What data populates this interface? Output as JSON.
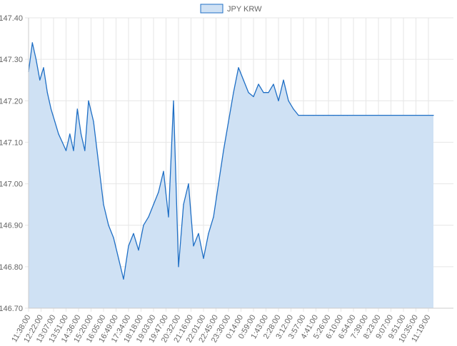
{
  "chart_data": {
    "type": "area",
    "title": "",
    "xlabel": "",
    "ylabel": "",
    "legend": {
      "position": "top",
      "entries": [
        "JPY KRW"
      ]
    },
    "grid": true,
    "colors": {
      "line": "#1f6fc5",
      "fill": "#cfe1f4",
      "grid": "#e6e6e6"
    },
    "ylim": [
      146.7,
      147.4
    ],
    "y_ticks": [
      "146.70",
      "146.80",
      "146.90",
      "147.00",
      "147.10",
      "147.20",
      "147.30",
      "147.40"
    ],
    "x_ticks": [
      "11:38:00",
      "12:22:00",
      "13:07:00",
      "13:51:00",
      "14:36:00",
      "15:20:00",
      "16:05:00",
      "16:49:00",
      "17:34:00",
      "18:18:00",
      "19:03:00",
      "19:47:00",
      "20:32:00",
      "21:16:00",
      "22:01:00",
      "22:45:00",
      "23:30:00",
      "0:14:00",
      "0:59:00",
      "1:43:00",
      "2:28:00",
      "3:12:00",
      "3:57:00",
      "4:41:00",
      "5:26:00",
      "6:10:00",
      "6:54:00",
      "7:39:00",
      "8:23:00",
      "9:07:00",
      "9:51:00",
      "10:35:00",
      "11:19:00"
    ],
    "series": [
      {
        "name": "JPY KRW",
        "x": [
          0,
          0.3,
          0.6,
          0.9,
          1.2,
          1.5,
          1.8,
          2.1,
          2.4,
          2.7,
          3.0,
          3.3,
          3.6,
          3.9,
          4.2,
          4.5,
          4.8,
          5.2,
          5.6,
          6.0,
          6.4,
          6.8,
          7.2,
          7.6,
          8.0,
          8.4,
          8.8,
          9.2,
          9.6,
          10.0,
          10.4,
          10.8,
          11.2,
          11.6,
          12.0,
          12.4,
          12.8,
          13.2,
          13.6,
          14.0,
          14.4,
          14.8,
          15.2,
          15.6,
          16.0,
          16.4,
          16.8,
          17.2,
          17.6,
          18.0,
          18.4,
          18.8,
          19.2,
          19.6,
          20.0,
          20.4,
          20.8,
          21.2,
          21.6,
          22.0,
          22.4,
          22.8,
          23.2,
          23.6,
          24.0,
          24.4,
          24.8,
          25.2,
          25.5,
          32.4
        ],
        "values": [
          147.27,
          147.34,
          147.3,
          147.25,
          147.28,
          147.22,
          147.18,
          147.15,
          147.12,
          147.1,
          147.08,
          147.12,
          147.08,
          147.18,
          147.12,
          147.08,
          147.2,
          147.15,
          147.05,
          146.95,
          146.9,
          146.87,
          146.82,
          146.77,
          146.85,
          146.88,
          146.84,
          146.9,
          146.92,
          146.95,
          146.98,
          147.03,
          146.92,
          147.2,
          146.8,
          146.95,
          147.0,
          146.85,
          146.88,
          146.82,
          146.88,
          146.92,
          147.0,
          147.08,
          147.15,
          147.22,
          147.28,
          147.25,
          147.22,
          147.21,
          147.24,
          147.22,
          147.22,
          147.24,
          147.2,
          147.25,
          147.2,
          147.18,
          147.165,
          147.165,
          147.165,
          147.165,
          147.165,
          147.165,
          147.165,
          147.165,
          147.165,
          147.165,
          147.165,
          147.165
        ]
      }
    ]
  }
}
